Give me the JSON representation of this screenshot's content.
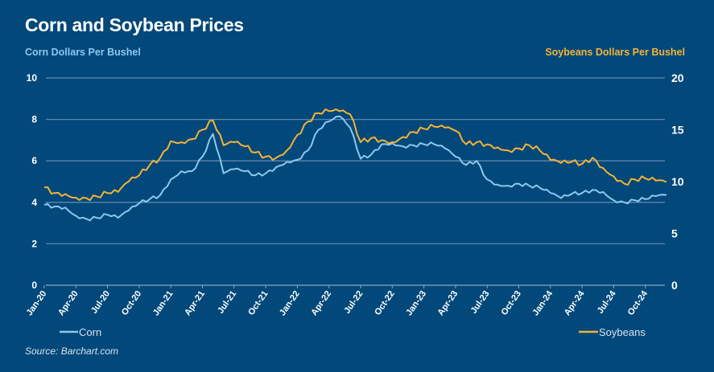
{
  "chart_data": {
    "type": "line",
    "title": "Corn and Soybean Prices",
    "ylabel_left": "Corn Dollars Per Bushel",
    "ylabel_right": "Soybeans Dollars Per Bushel",
    "source": "Source: Barchart.com",
    "ylim_left": [
      0,
      10
    ],
    "ylim_right": [
      0,
      20
    ],
    "yticks_left": [
      0,
      2,
      4,
      6,
      8,
      10
    ],
    "yticks_right": [
      0,
      5,
      10,
      15,
      20
    ],
    "grid": true,
    "x_tick_labels": [
      "Jan-20",
      "Apr-20",
      "Jul-20",
      "Oct-20",
      "Jan-21",
      "Apr-21",
      "Jul-21",
      "Oct-21",
      "Jan-22",
      "Apr-22",
      "Jul-22",
      "Oct-22",
      "Jan-23",
      "Apr-23",
      "Jul-23",
      "Oct-23",
      "Jan-24",
      "Apr-24",
      "Jul-24",
      "Oct-24"
    ],
    "x": [
      "Jan-20",
      "Feb-20",
      "Mar-20",
      "Apr-20",
      "May-20",
      "Jun-20",
      "Jul-20",
      "Aug-20",
      "Sep-20",
      "Oct-20",
      "Nov-20",
      "Dec-20",
      "Jan-21",
      "Feb-21",
      "Mar-21",
      "Apr-21",
      "May-21",
      "Jun-21",
      "Jul-21",
      "Aug-21",
      "Sep-21",
      "Oct-21",
      "Nov-21",
      "Dec-21",
      "Jan-22",
      "Feb-22",
      "Mar-22",
      "Apr-22",
      "May-22",
      "Jun-22",
      "Jul-22",
      "Aug-22",
      "Sep-22",
      "Oct-22",
      "Nov-22",
      "Dec-22",
      "Jan-23",
      "Feb-23",
      "Mar-23",
      "Apr-23",
      "May-23",
      "Jun-23",
      "Jul-23",
      "Aug-23",
      "Sep-23",
      "Oct-23",
      "Nov-23",
      "Dec-23",
      "Jan-24",
      "Feb-24",
      "Mar-24",
      "Apr-24",
      "May-24",
      "Jun-24",
      "Jul-24",
      "Aug-24",
      "Sep-24",
      "Oct-24",
      "Nov-24",
      "Dec-24"
    ],
    "series": [
      {
        "name": "Corn",
        "axis": "left",
        "color": "#8cc8ee",
        "values": [
          3.88,
          3.8,
          3.75,
          3.35,
          3.2,
          3.25,
          3.4,
          3.25,
          3.6,
          3.95,
          4.15,
          4.35,
          5.1,
          5.5,
          5.5,
          6.2,
          7.3,
          5.4,
          5.6,
          5.5,
          5.3,
          5.4,
          5.7,
          5.95,
          6.05,
          6.5,
          7.5,
          7.9,
          8.15,
          7.6,
          6.1,
          6.3,
          6.8,
          6.85,
          6.7,
          6.75,
          6.8,
          6.8,
          6.6,
          6.2,
          5.8,
          6.0,
          5.1,
          4.85,
          4.8,
          4.9,
          4.8,
          4.7,
          4.45,
          4.2,
          4.4,
          4.45,
          4.6,
          4.5,
          4.1,
          4.0,
          4.1,
          4.15,
          4.3,
          4.35
        ]
      },
      {
        "name": "Soybeans",
        "axis": "right",
        "color": "#f5b335",
        "values": [
          9.45,
          8.9,
          8.8,
          8.45,
          8.4,
          8.55,
          8.9,
          9.0,
          10.0,
          10.6,
          11.6,
          12.3,
          13.9,
          13.8,
          14.1,
          15.0,
          15.9,
          13.5,
          13.8,
          13.4,
          12.8,
          12.4,
          12.3,
          13.0,
          14.5,
          15.8,
          16.6,
          16.8,
          16.8,
          16.5,
          13.8,
          14.2,
          14.0,
          13.8,
          14.3,
          14.8,
          15.1,
          15.3,
          15.2,
          14.9,
          13.6,
          13.8,
          13.6,
          13.3,
          13.0,
          13.2,
          13.5,
          13.0,
          12.1,
          11.8,
          11.9,
          11.7,
          12.3,
          11.3,
          10.5,
          9.8,
          10.2,
          10.3,
          10.1,
          9.95
        ]
      }
    ],
    "legend": [
      {
        "label": "Corn",
        "color": "#8cc8ee",
        "placement": "bottom-left"
      },
      {
        "label": "Soybeans",
        "color": "#f5b335",
        "placement": "bottom-right"
      }
    ]
  }
}
